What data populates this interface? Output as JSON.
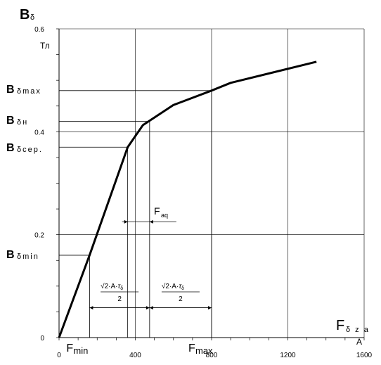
{
  "chart_data": {
    "type": "line",
    "xlim": [
      0,
      1600
    ],
    "ylim": [
      0,
      0.6
    ],
    "x_ticks": [
      0,
      400,
      800,
      1200,
      1600
    ],
    "y_ticks": [
      0,
      0.2,
      0.4,
      0.6
    ],
    "x_tick_labels": [
      "0",
      "400",
      "800",
      "1200",
      "1600"
    ],
    "y_tick_labels": [
      "0",
      "0.2",
      "0.4",
      "0.6"
    ],
    "ylabel_main": "B",
    "ylabel_sub": "δ",
    "yunit": "Тл",
    "xlabel_main": "F",
    "xlabel_sub": "δ z a",
    "xunit": "A",
    "grid": true,
    "series": [
      {
        "x": [
          0,
          160,
          360,
          440,
          600,
          800,
          900,
          1350
        ],
        "y": [
          0,
          0.16,
          0.37,
          0.413,
          0.452,
          0.48,
          0.495,
          0.536
        ]
      }
    ],
    "levels": [
      {
        "label_main": "B",
        "label_sub": "δmax",
        "y": 0.48,
        "x": 800
      },
      {
        "label_main": "B",
        "label_sub": "δн",
        "y": 0.42,
        "x": 475
      },
      {
        "label_main": "B",
        "label_sub": "δсер.",
        "y": 0.37,
        "x": 360
      },
      {
        "label_main": "B",
        "label_sub": "δmin",
        "y": 0.16,
        "x": 160
      }
    ],
    "x_markers": [
      {
        "label_main": "F",
        "label_sub": "min",
        "x": 160
      },
      {
        "label_main": "F",
        "label_sub": "max",
        "x": 800
      }
    ],
    "faq": {
      "label_main": "F",
      "label_sub": "aq",
      "x1": 360,
      "x2": 475,
      "y": 0.225
    },
    "dimensions": [
      {
        "x1": 160,
        "x2": 475,
        "y": 0.058,
        "label": "√2·A·τ_δ / 2"
      },
      {
        "x1": 475,
        "x2": 800,
        "y": 0.058,
        "label": "√2·A·τ_δ / 2"
      }
    ],
    "formula": {
      "sqrt": "√2",
      "mid": "·A·",
      "tau": "τ",
      "sub": "δ",
      "den": "2"
    }
  }
}
